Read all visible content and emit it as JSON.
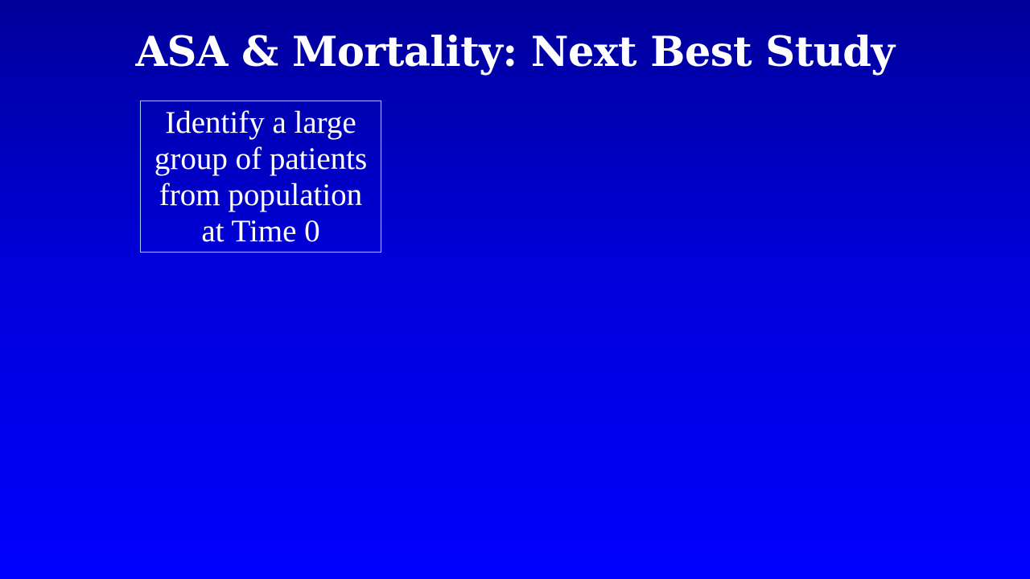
{
  "slide": {
    "title": "ASA & Mortality: Next Best Study",
    "step_box": {
      "lines": [
        "Identify a large",
        "group of patients",
        "from population",
        "at Time 0"
      ]
    }
  }
}
